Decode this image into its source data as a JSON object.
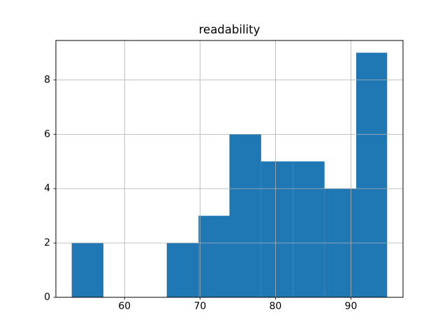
{
  "title": "readability",
  "chart_data": {
    "type": "histogram",
    "title": "readability",
    "xlabel": "",
    "ylabel": "",
    "bin_edges": [
      53.0,
      57.2,
      61.4,
      65.6,
      69.8,
      73.9,
      78.1,
      82.3,
      86.5,
      90.7,
      94.8
    ],
    "counts": [
      2,
      0,
      0,
      2,
      3,
      6,
      5,
      5,
      4,
      9
    ],
    "x_ticks": [
      60,
      70,
      80,
      90
    ],
    "x_tick_labels": [
      "60",
      "70",
      "80",
      "90"
    ],
    "y_ticks": [
      0,
      2,
      4,
      6,
      8
    ],
    "y_tick_labels": [
      "0",
      "2",
      "4",
      "6",
      "8"
    ],
    "xlim": [
      50.9,
      96.9
    ],
    "ylim": [
      0,
      9.45
    ],
    "grid": true,
    "grid_over_bars": true,
    "legend": null,
    "bar_color": "#1f77b4",
    "grid_color": "#b0b0b0",
    "spine_color": "#000000",
    "tick_color": "#000000",
    "background_color": "#ffffff"
  }
}
